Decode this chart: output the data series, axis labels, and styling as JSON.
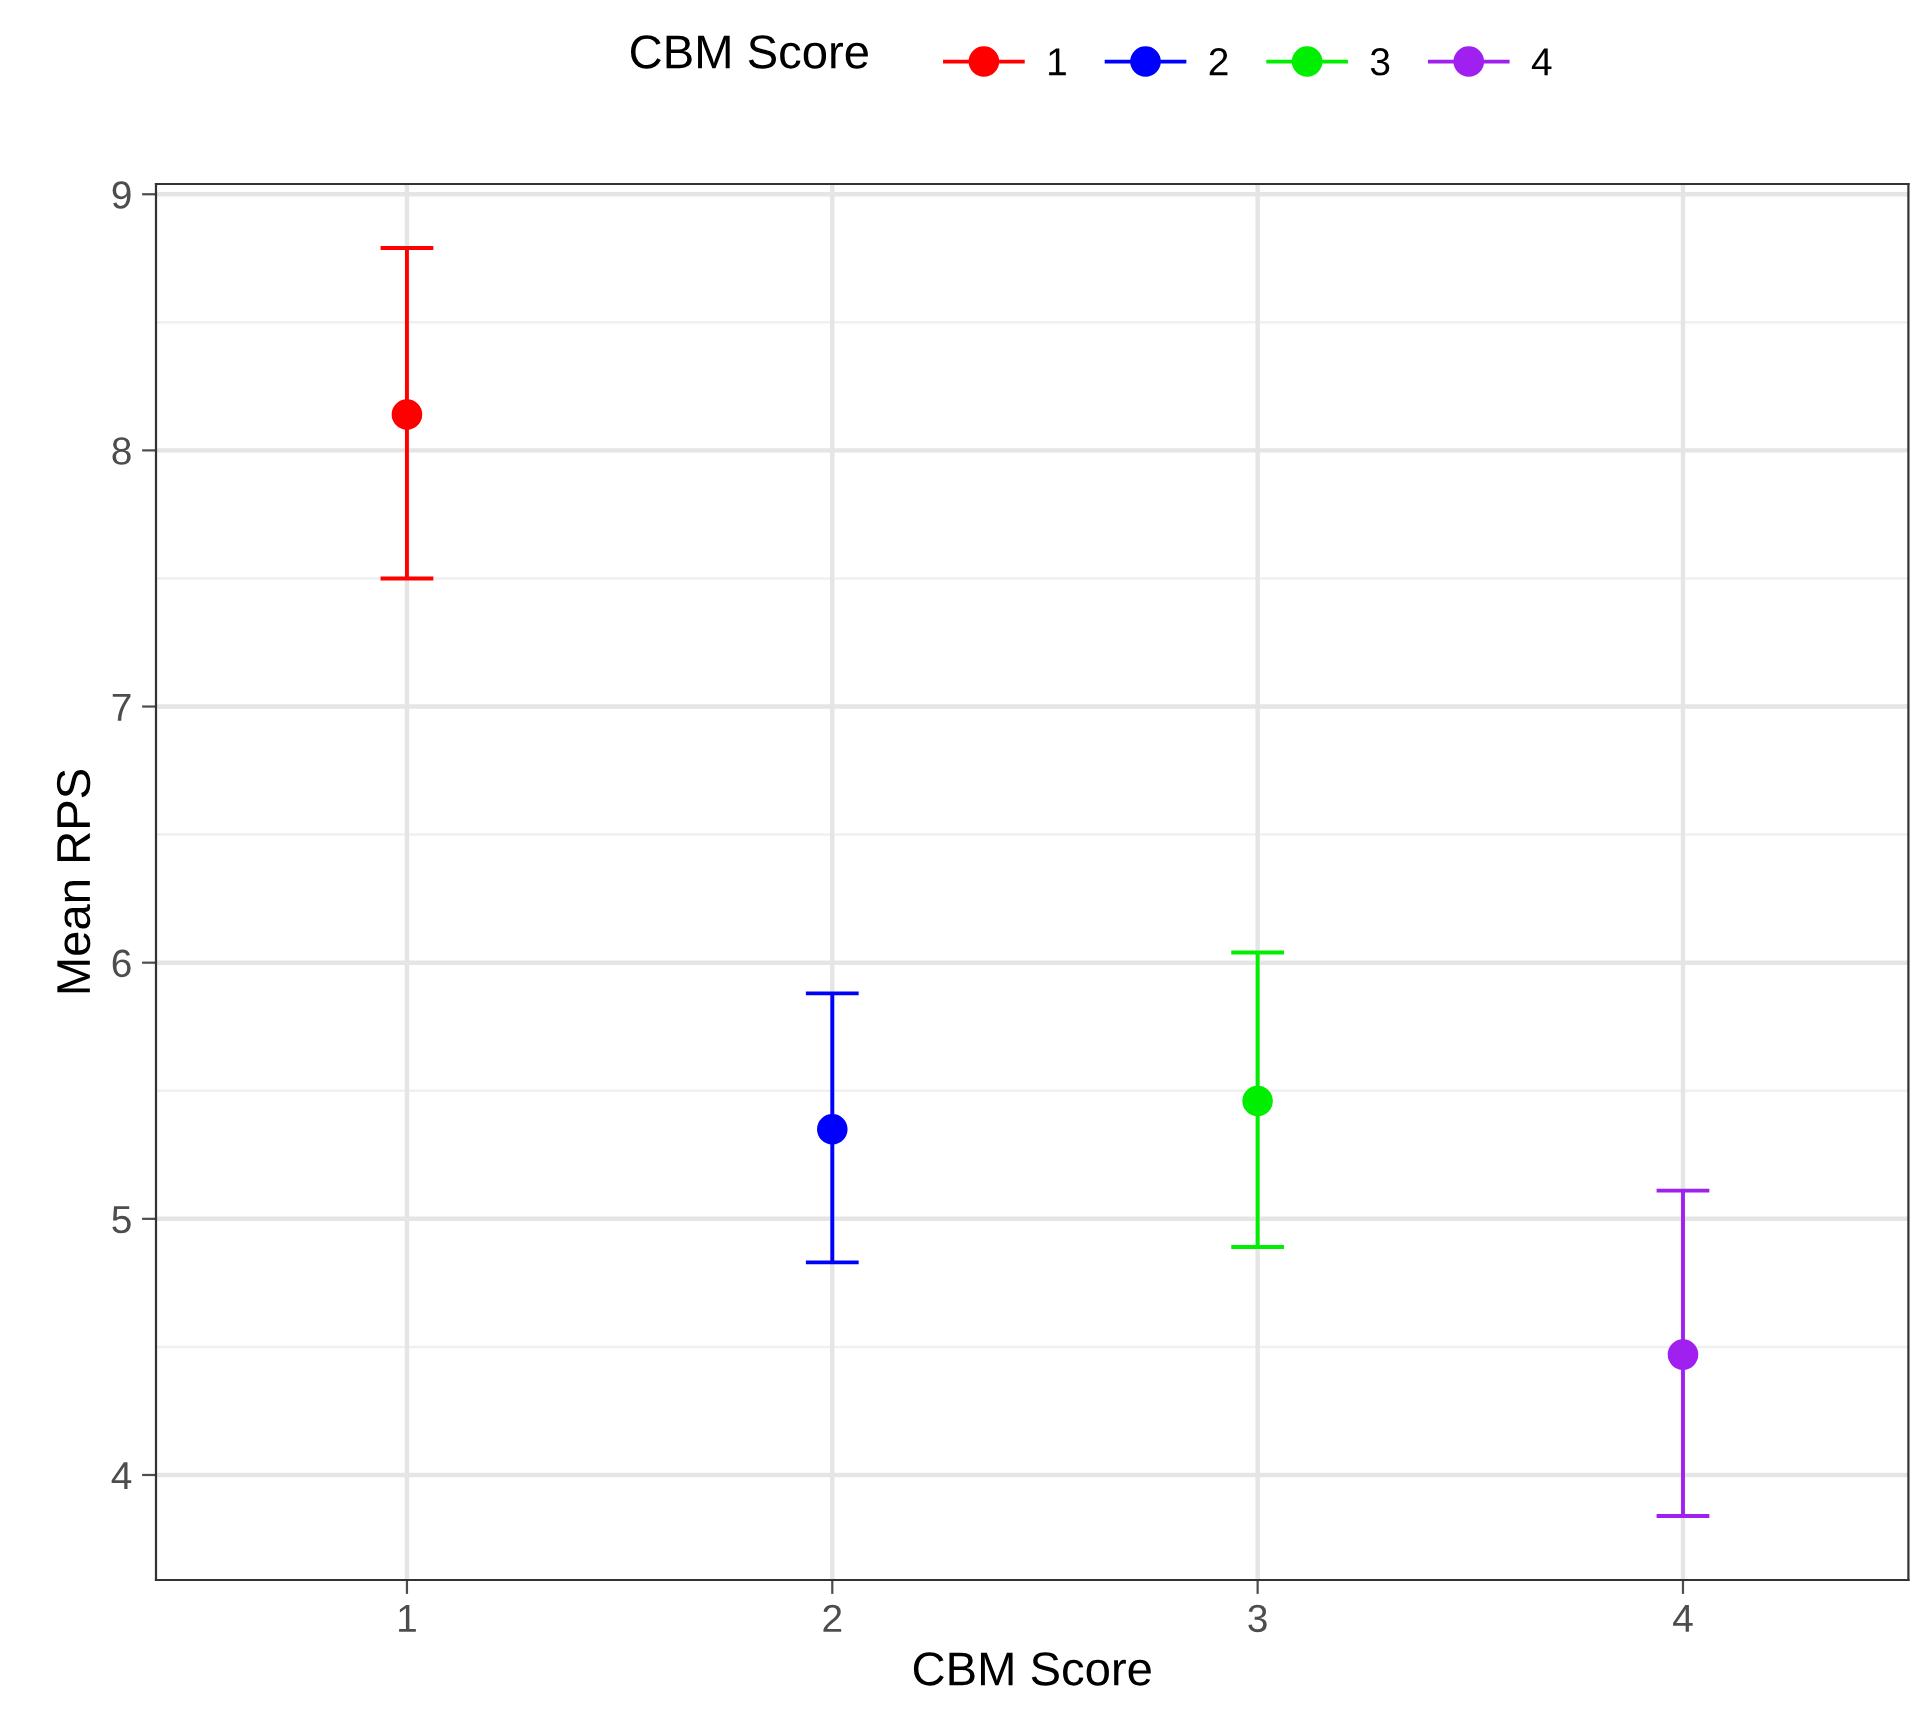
{
  "chart_data": {
    "type": "scatter",
    "xlabel": "CBM Score",
    "ylabel": "Mean RPS",
    "legend_title": "CBM Score",
    "categories": [
      "1",
      "2",
      "3",
      "4"
    ],
    "series": [
      {
        "name": "1",
        "color": "#ff0000",
        "x": [
          "1"
        ],
        "values": [
          8.14
        ],
        "errors": [
          [
            7.5,
            8.79
          ]
        ]
      },
      {
        "name": "2",
        "color": "#0000ff",
        "x": [
          "2"
        ],
        "values": [
          5.35
        ],
        "errors": [
          [
            4.83,
            5.88
          ]
        ]
      },
      {
        "name": "3",
        "color": "#00ee00",
        "x": [
          "3"
        ],
        "values": [
          5.46
        ],
        "errors": [
          [
            4.89,
            6.04
          ]
        ]
      },
      {
        "name": "4",
        "color": "#a020f0",
        "x": [
          "4"
        ],
        "values": [
          4.47
        ],
        "errors": [
          [
            3.84,
            5.11
          ]
        ]
      }
    ],
    "ylim": [
      3.59,
      9.04
    ],
    "yticks": [
      4,
      5,
      6,
      7,
      8,
      9
    ],
    "grid": true,
    "legend": "top",
    "marker": "circle"
  }
}
